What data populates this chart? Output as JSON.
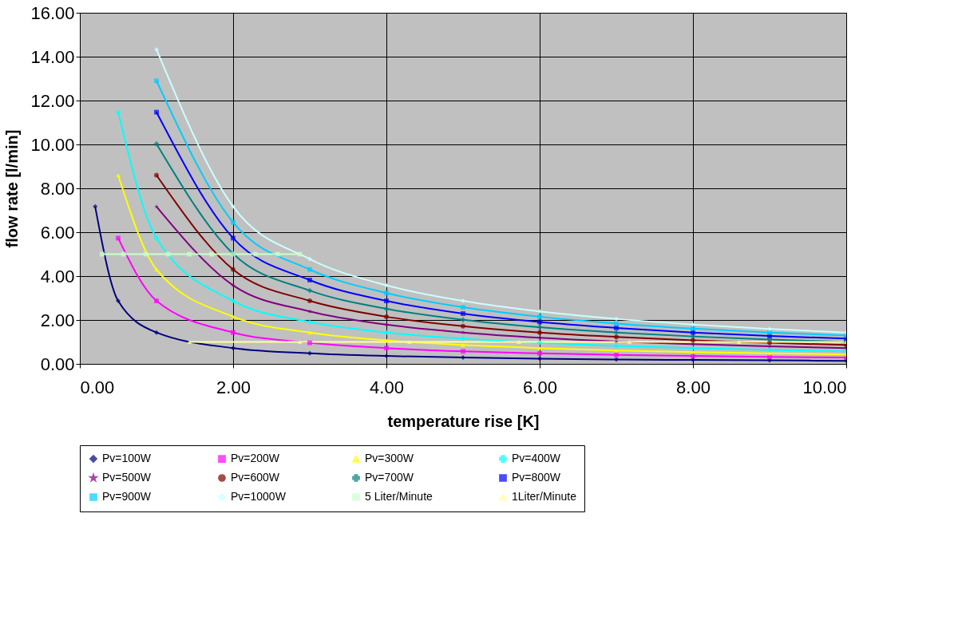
{
  "chart_data": {
    "type": "line",
    "xlabel": "temperature rise [K]",
    "ylabel": "flow rate [l/min]",
    "xlim": [
      0,
      10
    ],
    "ylim": [
      0,
      16
    ],
    "xticks": [
      {
        "value": 0,
        "label": "0.00"
      },
      {
        "value": 2,
        "label": "2.00"
      },
      {
        "value": 4,
        "label": "4.00"
      },
      {
        "value": 6,
        "label": "6.00"
      },
      {
        "value": 8,
        "label": "8.00"
      },
      {
        "value": 10,
        "label": "10.00"
      }
    ],
    "yticks": [
      {
        "value": 0,
        "label": "0.00"
      },
      {
        "value": 2,
        "label": "2.00"
      },
      {
        "value": 4,
        "label": "4.00"
      },
      {
        "value": 6,
        "label": "6.00"
      },
      {
        "value": 8,
        "label": "8.00"
      },
      {
        "value": 10,
        "label": "10.00"
      },
      {
        "value": 12,
        "label": "12.00"
      },
      {
        "value": 14,
        "label": "14.00"
      },
      {
        "value": 16,
        "label": "16.00"
      }
    ],
    "grid": true,
    "legend": "bottom",
    "series": [
      {
        "name": "Pv=100W",
        "color": "#000080",
        "marker": "diamond",
        "x": [
          0.2,
          0.5,
          1,
          2,
          3,
          4,
          5,
          6,
          7,
          8,
          9,
          10
        ],
        "values": [
          7.17,
          2.87,
          1.43,
          0.72,
          0.48,
          0.36,
          0.29,
          0.24,
          0.2,
          0.18,
          0.16,
          0.14
        ]
      },
      {
        "name": "Pv=200W",
        "color": "#ff00ff",
        "marker": "square",
        "x": [
          0.5,
          1,
          2,
          3,
          4,
          5,
          6,
          7,
          8,
          9,
          10
        ],
        "values": [
          5.73,
          2.87,
          1.43,
          0.96,
          0.72,
          0.57,
          0.48,
          0.41,
          0.36,
          0.32,
          0.29
        ]
      },
      {
        "name": "Pv=300W",
        "color": "#ffff00",
        "marker": "triangle",
        "x": [
          0.5,
          1,
          2,
          3,
          4,
          5,
          6,
          7,
          8,
          9,
          10
        ],
        "values": [
          8.6,
          4.3,
          2.15,
          1.43,
          1.07,
          0.86,
          0.72,
          0.61,
          0.54,
          0.48,
          0.43
        ]
      },
      {
        "name": "Pv=400W",
        "color": "#00ffff",
        "marker": "cross",
        "x": [
          0.5,
          1,
          2,
          3,
          4,
          5,
          6,
          7,
          8,
          9,
          10
        ],
        "values": [
          11.47,
          5.73,
          2.87,
          1.91,
          1.43,
          1.15,
          0.96,
          0.82,
          0.72,
          0.64,
          0.57
        ]
      },
      {
        "name": "Pv=500W",
        "color": "#800080",
        "marker": "star",
        "x": [
          1,
          2,
          3,
          4,
          5,
          6,
          7,
          8,
          9,
          10
        ],
        "values": [
          7.17,
          3.58,
          2.39,
          1.79,
          1.43,
          1.19,
          1.02,
          0.9,
          0.8,
          0.72
        ]
      },
      {
        "name": "Pv=600W",
        "color": "#800000",
        "marker": "circle",
        "x": [
          1,
          2,
          3,
          4,
          5,
          6,
          7,
          8,
          9,
          10
        ],
        "values": [
          8.6,
          4.3,
          2.87,
          2.15,
          1.72,
          1.43,
          1.23,
          1.07,
          0.96,
          0.86
        ]
      },
      {
        "name": "Pv=700W",
        "color": "#008080",
        "marker": "cross",
        "x": [
          1,
          2,
          3,
          4,
          5,
          6,
          7,
          8,
          9,
          10
        ],
        "values": [
          10.03,
          5.02,
          3.34,
          2.51,
          2.01,
          1.67,
          1.43,
          1.25,
          1.11,
          1.0
        ]
      },
      {
        "name": "Pv=800W",
        "color": "#0000ff",
        "marker": "square",
        "x": [
          1,
          2,
          3,
          4,
          5,
          6,
          7,
          8,
          9,
          10
        ],
        "values": [
          11.47,
          5.73,
          3.82,
          2.87,
          2.29,
          1.91,
          1.64,
          1.43,
          1.27,
          1.15
        ]
      },
      {
        "name": "Pv=900W",
        "color": "#00ccff",
        "marker": "square",
        "x": [
          1,
          2,
          3,
          4,
          5,
          6,
          7,
          8,
          9,
          10
        ],
        "values": [
          12.9,
          6.45,
          4.3,
          3.23,
          2.58,
          2.15,
          1.84,
          1.61,
          1.43,
          1.29
        ]
      },
      {
        "name": "Pv=1000W",
        "color": "#ccffff",
        "marker": "diamond",
        "x": [
          1,
          2,
          3,
          4,
          5,
          6,
          7,
          8,
          9,
          10
        ],
        "values": [
          14.33,
          7.17,
          4.78,
          3.58,
          2.87,
          2.39,
          2.05,
          1.79,
          1.59,
          1.43
        ]
      },
      {
        "name": "5 Liter/Minute",
        "color": "#ccffcc",
        "marker": "square",
        "x": [
          0.29,
          0.57,
          0.86,
          1.15,
          1.43,
          1.72,
          2.0,
          2.29,
          2.58,
          2.87
        ],
        "values": [
          5,
          5,
          5,
          5,
          5,
          5,
          5,
          5,
          5,
          5
        ]
      },
      {
        "name": "1Liter/Minute",
        "color": "#ffff99",
        "marker": "triangle",
        "x": [
          1.43,
          2.87,
          4.3,
          5.73,
          7.17,
          8.6,
          10.0
        ],
        "values": [
          1,
          1,
          1,
          1,
          1,
          1,
          1
        ]
      }
    ]
  }
}
